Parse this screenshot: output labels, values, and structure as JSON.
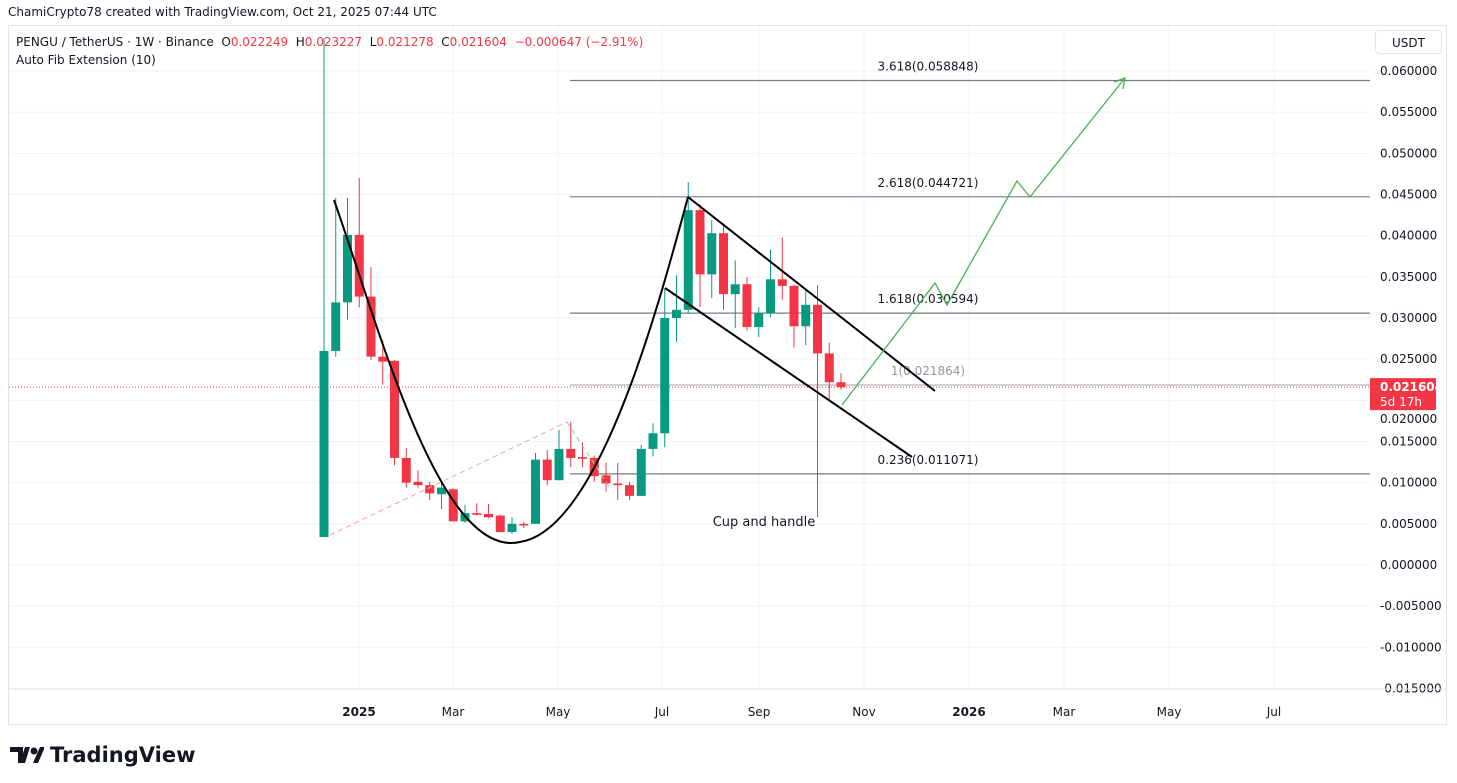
{
  "credit": "ChamiCrypto78 created with TradingView.com, Oct 21, 2025 07:44 UTC",
  "legend": {
    "symbol": "PENGU / TetherUS · 1W · Binance",
    "o_label": "O",
    "o": "0.022249",
    "h_label": "H",
    "h": "0.023227",
    "l_label": "L",
    "l": "0.021278",
    "c_label": "C",
    "c": "0.021604",
    "change": "−0.000647 (−2.91%)",
    "indicator": "Auto Fib Extension (10)"
  },
  "currency_button": "USDT",
  "brand": "TradingView",
  "colors": {
    "up": "#089981",
    "down": "#f23645",
    "projection": "#4caf50",
    "fib": "#787b86",
    "drawing": "#000000"
  },
  "chart_data": {
    "type": "candlestick",
    "interval": "1W",
    "ylim": [
      -0.0175,
      0.0635
    ],
    "y_ticks": [
      "0.060000",
      "0.055000",
      "0.050000",
      "0.045000",
      "0.040000",
      "0.035000",
      "0.030000",
      "0.025000",
      "0.020000",
      "0.015000",
      "0.010000",
      "0.005000",
      "0.000000",
      "-0.005000",
      "-0.010000",
      "-0.015000"
    ],
    "x_ticks": [
      "2025",
      "Mar",
      "May",
      "Jul",
      "Sep",
      "Nov",
      "2026",
      "Mar",
      "May",
      "Jul"
    ],
    "ohlc": [
      [
        0.0034,
        0.064,
        0.0034,
        0.026
      ],
      [
        0.026,
        0.0446,
        0.0253,
        0.0319
      ],
      [
        0.0319,
        0.0446,
        0.0298,
        0.0401
      ],
      [
        0.0401,
        0.047,
        0.0313,
        0.0326
      ],
      [
        0.0326,
        0.0362,
        0.0249,
        0.0253
      ],
      [
        0.0253,
        0.0273,
        0.0219,
        0.0247
      ],
      [
        0.0248,
        0.0249,
        0.0121,
        0.013
      ],
      [
        0.013,
        0.0142,
        0.0094,
        0.01
      ],
      [
        0.0101,
        0.0115,
        0.0094,
        0.0097
      ],
      [
        0.0097,
        0.0101,
        0.0079,
        0.0087
      ],
      [
        0.0086,
        0.01,
        0.0068,
        0.0094
      ],
      [
        0.0092,
        0.0093,
        0.0053,
        0.0053
      ],
      [
        0.0053,
        0.0073,
        0.0051,
        0.0063
      ],
      [
        0.0063,
        0.0075,
        0.006,
        0.0061
      ],
      [
        0.0062,
        0.0074,
        0.0057,
        0.0058
      ],
      [
        0.006,
        0.0061,
        0.004,
        0.004
      ],
      [
        0.004,
        0.0058,
        0.0038,
        0.005
      ],
      [
        0.005,
        0.0052,
        0.0045,
        0.0048
      ],
      [
        0.005,
        0.0136,
        0.005,
        0.0128
      ],
      [
        0.0128,
        0.014,
        0.0097,
        0.0103
      ],
      [
        0.0103,
        0.0164,
        0.0103,
        0.0141
      ],
      [
        0.0141,
        0.0174,
        0.0119,
        0.013
      ],
      [
        0.0131,
        0.0149,
        0.0119,
        0.0129
      ],
      [
        0.013,
        0.0133,
        0.0101,
        0.0108
      ],
      [
        0.0109,
        0.0124,
        0.0089,
        0.0099
      ],
      [
        0.0099,
        0.0124,
        0.0079,
        0.0097
      ],
      [
        0.0097,
        0.0101,
        0.0079,
        0.0084
      ],
      [
        0.0084,
        0.0146,
        0.0084,
        0.0141
      ],
      [
        0.0141,
        0.0172,
        0.0132,
        0.016
      ],
      [
        0.016,
        0.0336,
        0.0143,
        0.03
      ],
      [
        0.03,
        0.0352,
        0.0271,
        0.031
      ],
      [
        0.031,
        0.0465,
        0.0306,
        0.0431
      ],
      [
        0.0431,
        0.0438,
        0.0313,
        0.0353
      ],
      [
        0.0353,
        0.0419,
        0.0324,
        0.0403
      ],
      [
        0.0403,
        0.0415,
        0.031,
        0.0329
      ],
      [
        0.0329,
        0.037,
        0.0288,
        0.0341
      ],
      [
        0.0341,
        0.035,
        0.0285,
        0.0289
      ],
      [
        0.0289,
        0.0313,
        0.0277,
        0.0306
      ],
      [
        0.0306,
        0.0383,
        0.0301,
        0.0347
      ],
      [
        0.0347,
        0.0398,
        0.0322,
        0.0339
      ],
      [
        0.0339,
        0.0341,
        0.0264,
        0.029
      ],
      [
        0.029,
        0.0334,
        0.0267,
        0.0316
      ],
      [
        0.0316,
        0.034,
        0.0058,
        0.0257
      ],
      [
        0.0257,
        0.027,
        0.02,
        0.0222
      ],
      [
        0.0222,
        0.0233,
        0.0213,
        0.0216
      ]
    ],
    "last_price": "0.021604",
    "countdown": "5d 17h",
    "fib_levels": [
      {
        "label": "3.618(0.058848)",
        "value": 0.058848
      },
      {
        "label": "2.618(0.044721)",
        "value": 0.044721
      },
      {
        "label": "1.618(0.030594)",
        "value": 0.030594
      },
      {
        "label": "1(0.021864)",
        "value": 0.021864
      },
      {
        "label": "0.236(0.011071)",
        "value": 0.011071
      }
    ],
    "annotation": "Cup and handle"
  }
}
